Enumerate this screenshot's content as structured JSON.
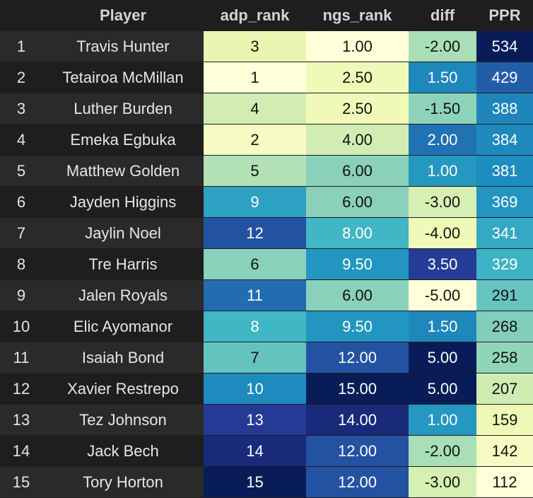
{
  "chart_data": {
    "type": "table",
    "columns": [
      "",
      "Player",
      "adp_rank",
      "ngs_rank",
      "diff",
      "PPR"
    ],
    "rows": [
      {
        "index": "1",
        "player": "Travis Hunter",
        "adp_rank": "3",
        "ngs_rank": "1.00",
        "diff": "-2.00",
        "ppr": "534"
      },
      {
        "index": "2",
        "player": "Tetairoa McMillan",
        "adp_rank": "1",
        "ngs_rank": "2.50",
        "diff": "1.50",
        "ppr": "429"
      },
      {
        "index": "3",
        "player": "Luther Burden",
        "adp_rank": "4",
        "ngs_rank": "2.50",
        "diff": "-1.50",
        "ppr": "388"
      },
      {
        "index": "4",
        "player": "Emeka Egbuka",
        "adp_rank": "2",
        "ngs_rank": "4.00",
        "diff": "2.00",
        "ppr": "384"
      },
      {
        "index": "5",
        "player": "Matthew Golden",
        "adp_rank": "5",
        "ngs_rank": "6.00",
        "diff": "1.00",
        "ppr": "381"
      },
      {
        "index": "6",
        "player": "Jayden Higgins",
        "adp_rank": "9",
        "ngs_rank": "6.00",
        "diff": "-3.00",
        "ppr": "369"
      },
      {
        "index": "7",
        "player": "Jaylin Noel",
        "adp_rank": "12",
        "ngs_rank": "8.00",
        "diff": "-4.00",
        "ppr": "341"
      },
      {
        "index": "8",
        "player": "Tre Harris",
        "adp_rank": "6",
        "ngs_rank": "9.50",
        "diff": "3.50",
        "ppr": "329"
      },
      {
        "index": "9",
        "player": "Jalen Royals",
        "adp_rank": "11",
        "ngs_rank": "6.00",
        "diff": "-5.00",
        "ppr": "291"
      },
      {
        "index": "10",
        "player": "Elic Ayomanor",
        "adp_rank": "8",
        "ngs_rank": "9.50",
        "diff": "1.50",
        "ppr": "268"
      },
      {
        "index": "11",
        "player": "Isaiah Bond",
        "adp_rank": "7",
        "ngs_rank": "12.00",
        "diff": "5.00",
        "ppr": "258"
      },
      {
        "index": "12",
        "player": "Xavier Restrepo",
        "adp_rank": "10",
        "ngs_rank": "15.00",
        "diff": "5.00",
        "ppr": "207"
      },
      {
        "index": "13",
        "player": "Tez Johnson",
        "adp_rank": "13",
        "ngs_rank": "14.00",
        "diff": "1.00",
        "ppr": "159"
      },
      {
        "index": "14",
        "player": "Jack Bech",
        "adp_rank": "14",
        "ngs_rank": "12.00",
        "diff": "-2.00",
        "ppr": "142"
      },
      {
        "index": "15",
        "player": "Tory Horton",
        "adp_rank": "15",
        "ngs_rank": "12.00",
        "diff": "-3.00",
        "ppr": "112"
      }
    ],
    "colormap": [
      "#ffffd9",
      "#edf8b1",
      "#c7e9b4",
      "#7fcdbb",
      "#41b6c4",
      "#1d91c0",
      "#225ea8",
      "#253494",
      "#081d58"
    ],
    "dark_text_color": "#111111",
    "light_text_color": "#ffffff",
    "stripe_colors": [
      "#2a2a2a",
      "#1e1e1e"
    ]
  }
}
